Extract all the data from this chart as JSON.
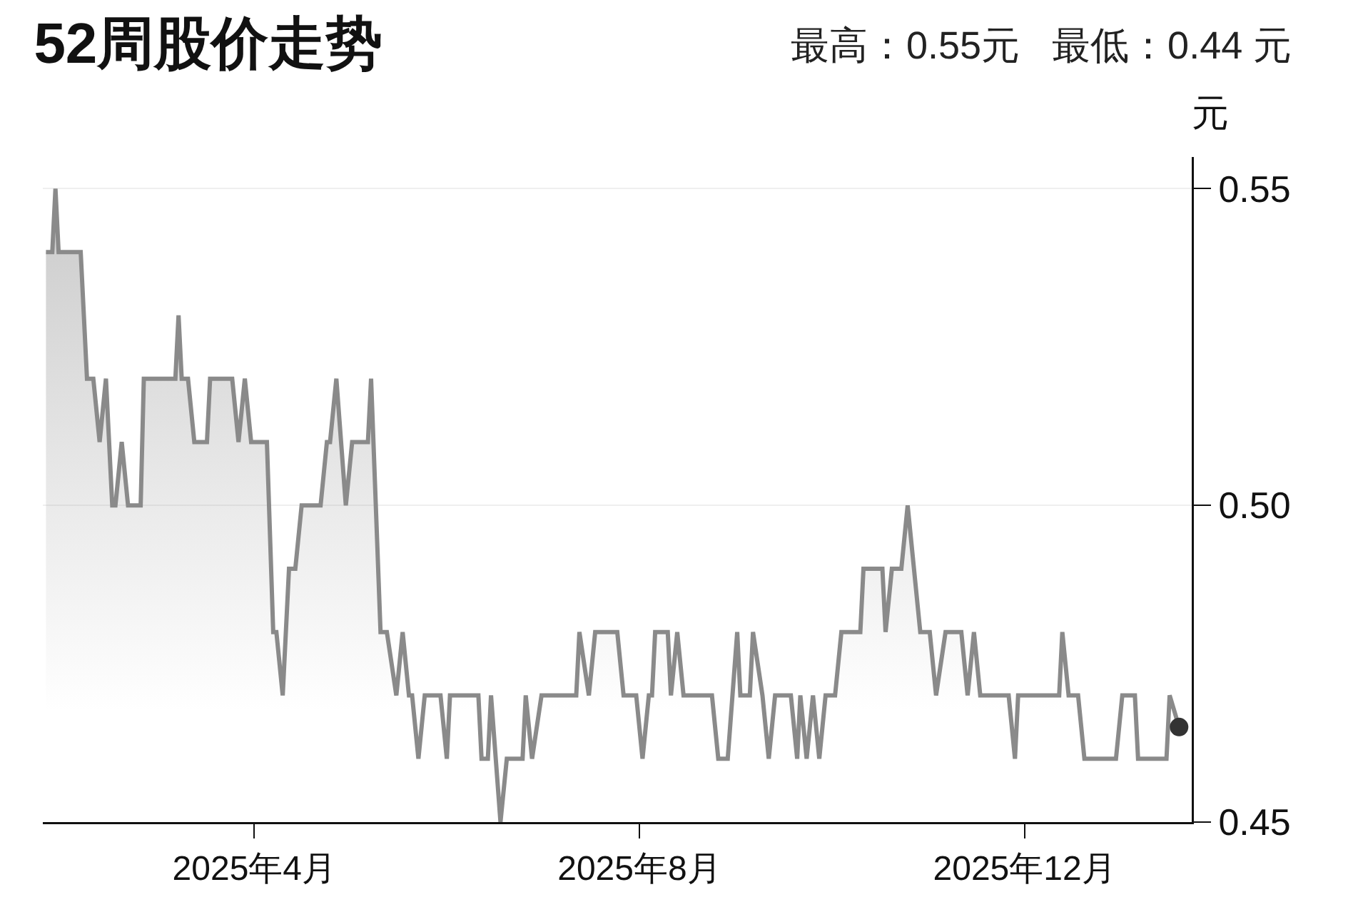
{
  "chart_data": {
    "type": "area",
    "title": "52周股价走势",
    "subtitle": "最高：0.55元   最低：0.44 元",
    "ylabel": "元",
    "xlim": [
      "2025-01-24",
      "2026-01-23"
    ],
    "xticks": [
      {
        "value": "2025-04-01",
        "label": "2025年4月"
      },
      {
        "value": "2025-08-01",
        "label": "2025年8月"
      },
      {
        "value": "2025-12-01",
        "label": "2025年12月"
      }
    ],
    "ylim": [
      0.45,
      0.555
    ],
    "yticks": [
      0.45,
      {
        "value": 0.5,
        "label": "0.50"
      },
      0.55
    ],
    "grid": "y",
    "marker": "none",
    "line_style": "solid",
    "series": [
      {
        "color": "#8a8a8a",
        "x": [
          "2025-01-25",
          "2025-01-27",
          "2025-01-28",
          "2025-01-29",
          "2025-02-05",
          "2025-02-07",
          "2025-02-09",
          "2025-02-11",
          "2025-02-13",
          "2025-02-15",
          "2025-02-16",
          "2025-02-18",
          "2025-02-20",
          "2025-02-24",
          "2025-02-25",
          "2025-03-07",
          "2025-03-08",
          "2025-03-09",
          "2025-03-11",
          "2025-03-13",
          "2025-03-17",
          "2025-03-18",
          "2025-03-25",
          "2025-03-27",
          "2025-03-29",
          "2025-03-31",
          "2025-04-05",
          "2025-04-07",
          "2025-04-08",
          "2025-04-10",
          "2025-04-12",
          "2025-04-14",
          "2025-04-16",
          "2025-04-22",
          "2025-04-24",
          "2025-04-25",
          "2025-04-27",
          "2025-04-30",
          "2025-05-02",
          "2025-05-07",
          "2025-05-08",
          "2025-05-11",
          "2025-05-13",
          "2025-05-16",
          "2025-05-18",
          "2025-05-20",
          "2025-05-21",
          "2025-05-23",
          "2025-05-25",
          "2025-05-30",
          "2025-06-01",
          "2025-06-02",
          "2025-06-11",
          "2025-06-12",
          "2025-06-14",
          "2025-06-15",
          "2025-06-18",
          "2025-06-20",
          "2025-06-25",
          "2025-06-26",
          "2025-06-28",
          "2025-07-01",
          "2025-07-12",
          "2025-07-13",
          "2025-07-16",
          "2025-07-18",
          "2025-07-25",
          "2025-07-27",
          "2025-07-31",
          "2025-08-02",
          "2025-08-04",
          "2025-08-05",
          "2025-08-06",
          "2025-08-10",
          "2025-08-11",
          "2025-08-13",
          "2025-08-15",
          "2025-08-24",
          "2025-08-26",
          "2025-08-29",
          "2025-09-01",
          "2025-09-02",
          "2025-09-05",
          "2025-09-06",
          "2025-09-09",
          "2025-09-11",
          "2025-09-13",
          "2025-09-18",
          "2025-09-20",
          "2025-09-21",
          "2025-09-23",
          "2025-09-25",
          "2025-09-27",
          "2025-09-29",
          "2025-10-02",
          "2025-10-04",
          "2025-10-10",
          "2025-10-11",
          "2025-10-17",
          "2025-10-18",
          "2025-10-20",
          "2025-10-23",
          "2025-10-25",
          "2025-10-29",
          "2025-11-01",
          "2025-11-03",
          "2025-11-06",
          "2025-11-11",
          "2025-11-13",
          "2025-11-15",
          "2025-11-17",
          "2025-11-26",
          "2025-11-28",
          "2025-11-29",
          "2025-12-12",
          "2025-12-13",
          "2025-12-15",
          "2025-12-18",
          "2025-12-20",
          "2025-12-30",
          "2026-01-01",
          "2026-01-05",
          "2026-01-06",
          "2026-01-15",
          "2026-01-16",
          "2026-01-19"
        ],
        "values": [
          0.54,
          0.54,
          0.55,
          0.54,
          0.54,
          0.52,
          0.52,
          0.51,
          0.52,
          0.5,
          0.5,
          0.51,
          0.5,
          0.5,
          0.52,
          0.52,
          0.53,
          0.52,
          0.52,
          0.51,
          0.51,
          0.52,
          0.52,
          0.51,
          0.52,
          0.51,
          0.51,
          0.48,
          0.48,
          0.47,
          0.49,
          0.49,
          0.5,
          0.5,
          0.51,
          0.51,
          0.52,
          0.5,
          0.51,
          0.51,
          0.52,
          0.48,
          0.48,
          0.47,
          0.48,
          0.47,
          0.47,
          0.46,
          0.47,
          0.47,
          0.46,
          0.47,
          0.47,
          0.46,
          0.46,
          0.47,
          0.45,
          0.46,
          0.46,
          0.47,
          0.46,
          0.47,
          0.47,
          0.48,
          0.47,
          0.48,
          0.48,
          0.47,
          0.47,
          0.46,
          0.47,
          0.47,
          0.48,
          0.48,
          0.47,
          0.48,
          0.47,
          0.47,
          0.46,
          0.46,
          0.48,
          0.47,
          0.47,
          0.48,
          0.47,
          0.46,
          0.47,
          0.47,
          0.46,
          0.47,
          0.46,
          0.47,
          0.46,
          0.47,
          0.47,
          0.48,
          0.48,
          0.49,
          0.49,
          0.48,
          0.49,
          0.49,
          0.5,
          0.48,
          0.48,
          0.47,
          0.48,
          0.48,
          0.47,
          0.48,
          0.47,
          0.47,
          0.46,
          0.47,
          0.47,
          0.48,
          0.47,
          0.47,
          0.46,
          0.46,
          0.47,
          0.47,
          0.46,
          0.46,
          0.47,
          0.465
        ]
      },
      {
        "type": "scatter",
        "marker": "circle",
        "color": "#333333",
        "x": [
          "2026-01-19"
        ],
        "values": [
          0.465
        ]
      }
    ]
  }
}
